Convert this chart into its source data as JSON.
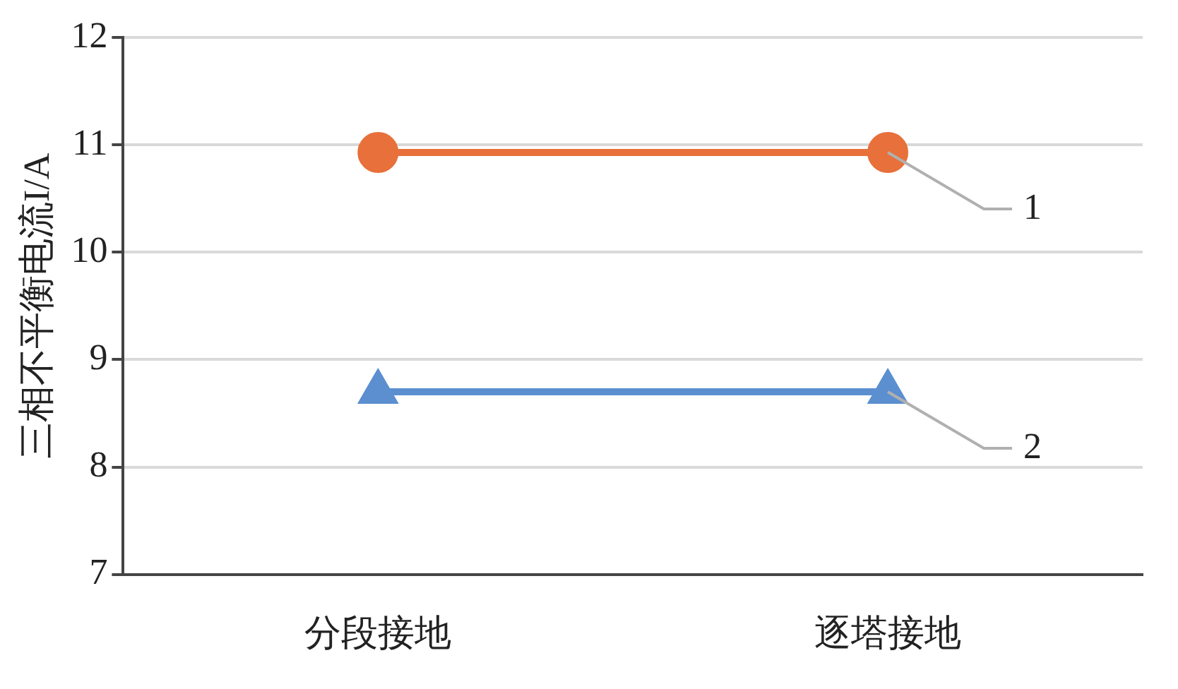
{
  "chart_data": {
    "type": "line",
    "ylabel": "三相不平衡电流I/A",
    "categories": [
      "分段接地",
      "逐塔接地"
    ],
    "series": [
      {
        "name": "1",
        "color": "#e8703a",
        "values": [
          10.93,
          10.93
        ],
        "marker": "circle"
      },
      {
        "name": "2",
        "color": "#5b8fd0",
        "values": [
          8.7,
          8.7
        ],
        "marker": "triangle"
      }
    ],
    "ylim": [
      7,
      12
    ],
    "yticks": [
      7,
      8,
      9,
      10,
      11,
      12
    ],
    "grid": "y",
    "legend": false,
    "line_style": "solid"
  }
}
